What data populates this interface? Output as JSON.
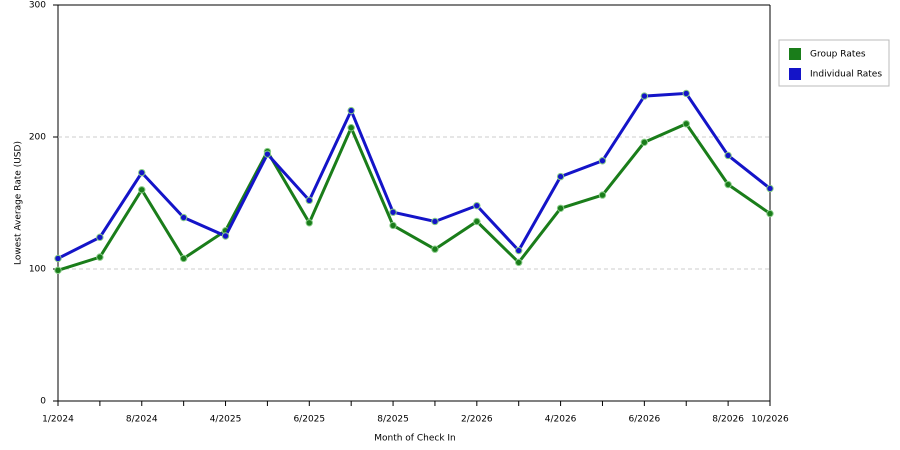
{
  "chart_data": {
    "type": "line",
    "x_label": "Month of Check In",
    "y_label": "Lowest Average Rate (USD)",
    "categories": [
      "1/2024",
      null,
      "8/2024",
      null,
      "4/2025",
      null,
      "6/2025",
      null,
      "8/2025",
      null,
      "2/2026",
      null,
      "4/2026",
      null,
      "6/2026",
      null,
      "8/2026",
      "10/2026"
    ],
    "series": [
      {
        "name": "Group Rates",
        "color": "#1a7d1a",
        "values": [
          99,
          109,
          160,
          108,
          129,
          189,
          135,
          207,
          133,
          115,
          136,
          105,
          146,
          156,
          196,
          210,
          164,
          142
        ]
      },
      {
        "name": "Individual Rates",
        "color": "#1414c8",
        "values": [
          108,
          124,
          173,
          139,
          125,
          187,
          152,
          220,
          143,
          136,
          148,
          114,
          170,
          182,
          231,
          233,
          186,
          161
        ]
      }
    ],
    "ylim": [
      0,
      300
    ],
    "yticks": [
      0,
      100,
      200,
      300
    ],
    "grid": true,
    "legend": "right"
  }
}
